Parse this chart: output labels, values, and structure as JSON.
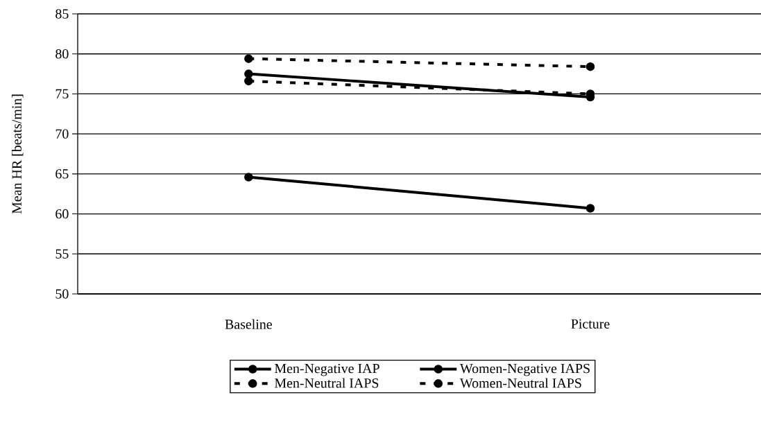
{
  "chart_data": {
    "type": "line",
    "ylabel": "Mean HR [beats/min]",
    "categories": [
      "Baseline",
      "Picture"
    ],
    "series": [
      {
        "name": "Men-Negative IAP",
        "color": "#000000",
        "values": [
          64.6,
          60.7
        ],
        "line_style": "solid",
        "marker": "circle"
      },
      {
        "name": "Women-Negative IAPS",
        "color": "#000000",
        "values": [
          77.5,
          74.6
        ],
        "line_style": "solid",
        "marker": "circle"
      },
      {
        "name": "Men-Neutral IAPS",
        "color": "#000000",
        "values": [
          76.6,
          75.0
        ],
        "line_style": "dashed",
        "marker": "circle"
      },
      {
        "name": "Women-Neutral IAPS",
        "color": "#000000",
        "values": [
          79.4,
          78.4
        ],
        "line_style": "dashed",
        "marker": "circle"
      }
    ],
    "ylim": [
      50,
      85
    ],
    "yticks": [
      50,
      55,
      60,
      65,
      70,
      75,
      80,
      85
    ],
    "grid": "y",
    "legend": "bottom"
  }
}
